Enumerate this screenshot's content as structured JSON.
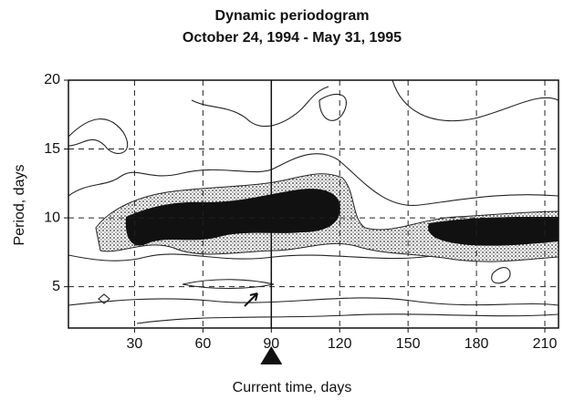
{
  "chart_data": {
    "type": "contour",
    "title": "Dynamic periodogram",
    "subtitle": "October 24, 1994 - May 31, 1995",
    "x_label": "Current time, days",
    "y_label": "Period, days",
    "xlim": [
      1,
      216
    ],
    "ylim": [
      2,
      20
    ],
    "xticks": [
      30,
      60,
      90,
      120,
      150,
      180,
      210
    ],
    "yticks": [
      5,
      10,
      15,
      20
    ],
    "current_time": 90,
    "grid": true
  }
}
